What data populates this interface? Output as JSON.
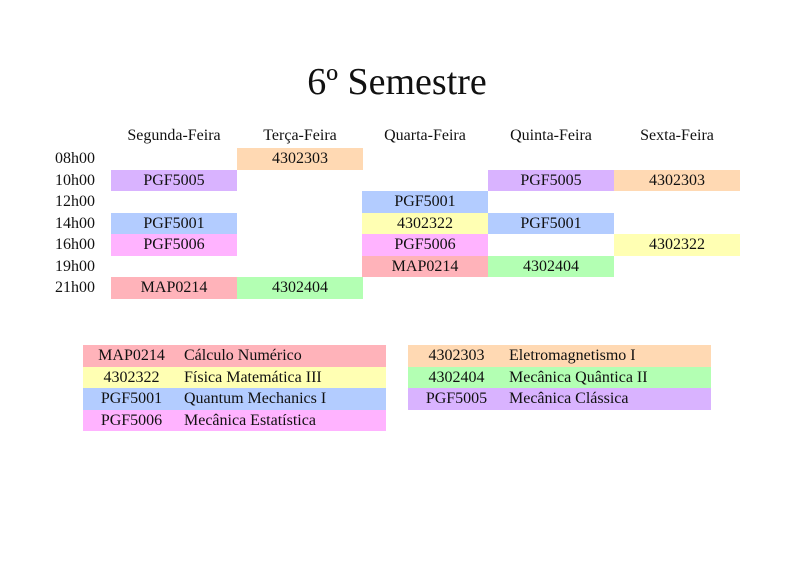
{
  "title": "6º Semestre",
  "days": [
    "Segunda-Feira",
    "Terça-Feira",
    "Quarta-Feira",
    "Quinta-Feira",
    "Sexta-Feira"
  ],
  "times": [
    "08h00",
    "10h00",
    "12h00",
    "14h00",
    "16h00",
    "19h00",
    "21h00"
  ],
  "schedule": [
    [
      "",
      "4302303",
      "",
      "",
      ""
    ],
    [
      "PGF5005",
      "",
      "",
      "PGF5005",
      "4302303"
    ],
    [
      "",
      "",
      "PGF5001",
      "",
      ""
    ],
    [
      "PGF5001",
      "",
      "4302322",
      "PGF5001",
      ""
    ],
    [
      "PGF5006",
      "",
      "PGF5006",
      "",
      "4302322"
    ],
    [
      "",
      "",
      "MAP0214",
      "4302404",
      ""
    ],
    [
      "MAP0214",
      "4302404",
      "",
      "",
      ""
    ]
  ],
  "colors": {
    "MAP0214": "#ffb3ba",
    "4302322": "#ffffb3",
    "PGF5001": "#b3ccff",
    "PGF5006": "#ffb3ff",
    "4302303": "#ffd9b3",
    "4302404": "#b3ffb3",
    "PGF5005": "#d9b3ff"
  },
  "legend_left": [
    {
      "code": "MAP0214",
      "name": "Cálculo Numérico"
    },
    {
      "code": "4302322",
      "name": "Física Matemática III"
    },
    {
      "code": "PGF5001",
      "name": "Quantum Mechanics I"
    },
    {
      "code": "PGF5006",
      "name": "Mecânica Estatística"
    }
  ],
  "legend_right": [
    {
      "code": "4302303",
      "name": "Eletromagnetismo I"
    },
    {
      "code": "4302404",
      "name": "Mecânica Quântica II"
    },
    {
      "code": "PGF5005",
      "name": "Mecânica Clássica"
    }
  ]
}
